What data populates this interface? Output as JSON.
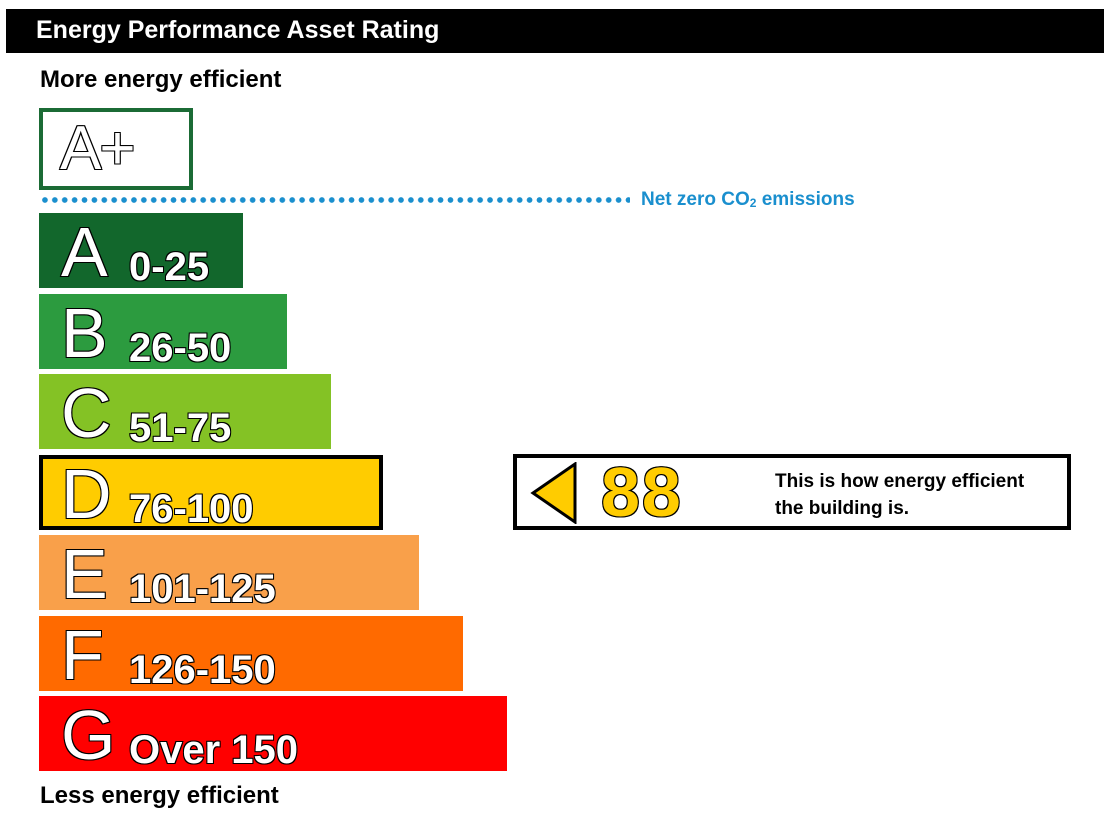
{
  "header": {
    "title": "Energy Performance Asset Rating"
  },
  "scale": {
    "top_label": "More energy efficient",
    "bottom_label": "Less energy efficient",
    "net_zero_rating": "A+",
    "net_zero_label_prefix": "Net zero CO",
    "net_zero_label_sub": "2",
    "net_zero_label_suffix": " emissions",
    "net_zero_color": "#1a8fce",
    "net_zero_box_border": "#1b6b35"
  },
  "chart_data": {
    "type": "bar",
    "title": "Energy Performance Asset Rating",
    "categories": [
      "A",
      "B",
      "C",
      "D",
      "E",
      "F",
      "G"
    ],
    "ranges": [
      "0-25",
      "26-50",
      "51-75",
      "76-100",
      "101-125",
      "126-150",
      "Over 150"
    ],
    "colors": [
      "#12672c",
      "#2c9b3f",
      "#84c225",
      "#ffcc00",
      "#f9a04a",
      "#ff6a00",
      "#ff0000"
    ],
    "relative_lengths": [
      1,
      2,
      3,
      4,
      5,
      6,
      7
    ],
    "rating_value": 88,
    "rating_band": "D"
  },
  "indicator": {
    "score": "88",
    "message_line1": "This is how energy efficient",
    "message_line2": "the building is.",
    "color": "#ffcc00"
  }
}
